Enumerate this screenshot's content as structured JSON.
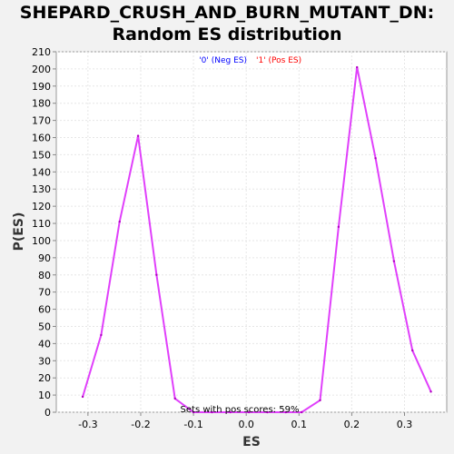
{
  "chart_data": {
    "type": "line",
    "title_lines": [
      "SHEPARD_CRUSH_AND_BURN_MUTANT_DN:",
      "Random ES distribution"
    ],
    "xlabel": "ES",
    "ylabel": "P(ES)",
    "xlim": [
      -0.36,
      0.38
    ],
    "ylim": [
      0,
      210
    ],
    "x_ticks": [
      -0.3,
      -0.2,
      -0.1,
      0.0,
      0.1,
      0.2,
      0.3
    ],
    "x_tick_labels": [
      "-0.3",
      "-0.2",
      "-0.1",
      "0.0",
      "0.1",
      "0.2",
      "0.3"
    ],
    "y_ticks": [
      0,
      10,
      20,
      30,
      40,
      50,
      60,
      70,
      80,
      90,
      100,
      110,
      120,
      130,
      140,
      150,
      160,
      170,
      180,
      190,
      200,
      210
    ],
    "grid": true,
    "legend": [
      {
        "label": "'0' (Neg ES)",
        "color": "#0000ff"
      },
      {
        "label": "'1' (Pos ES)",
        "color": "#ff0000"
      }
    ],
    "legend_position": "top-center",
    "annotation": "Sets with pos scores: 59%",
    "series": [
      {
        "color": "#e040fb",
        "x": [
          -0.31,
          -0.275,
          -0.24,
          -0.205,
          -0.17,
          -0.135,
          -0.1,
          -0.065,
          -0.03,
          0.005,
          0.04,
          0.075,
          0.105,
          0.14,
          0.175,
          0.21,
          0.245,
          0.28,
          0.315,
          0.35
        ],
        "y": [
          9,
          45,
          111,
          161,
          80,
          8,
          0,
          0,
          0,
          0,
          0,
          0,
          0,
          7,
          108,
          201,
          148,
          88,
          36,
          12
        ]
      }
    ]
  }
}
